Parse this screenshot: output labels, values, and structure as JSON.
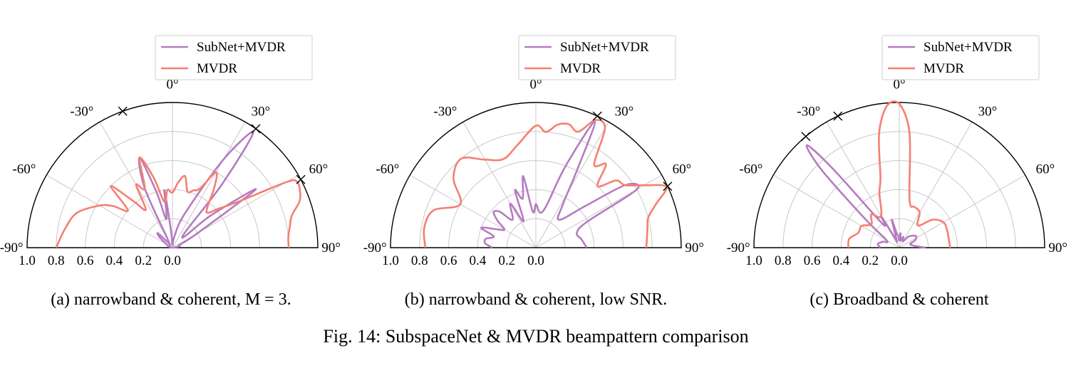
{
  "figure": {
    "caption": "Fig. 14: SubspaceNet & MVDR beampattern comparison"
  },
  "colors": {
    "subnet": "#b57cc1",
    "mvdr": "#f57f72",
    "grid": "#c8c8c8"
  },
  "chart_data": [
    {
      "type": "polar-line",
      "caption": "(a) narrowband & coherent, M = 3.",
      "angle_ticks": [
        "-90°",
        "-60°",
        "-30°",
        "0°",
        "30°",
        "60°",
        "90°"
      ],
      "radial_ticks": [
        "1.0",
        "0.8",
        "0.6",
        "0.4",
        "0.2",
        "0.0"
      ],
      "angle_range": [
        -90,
        90
      ],
      "radial_range": [
        0,
        1
      ],
      "source_markers_deg": [
        -20,
        35,
        62
      ],
      "legend": [
        "SubNet+MVDR",
        "MVDR"
      ],
      "legend_position": "top-right",
      "series": [
        {
          "name": "SubNet+MVDR",
          "points": [
            [
              -90,
              0.0
            ],
            [
              -75,
              0.02
            ],
            [
              -60,
              0.05
            ],
            [
              -50,
              0.12
            ],
            [
              -45,
              0.14
            ],
            [
              -40,
              0.05
            ],
            [
              -30,
              0.06
            ],
            [
              -25,
              0.45
            ],
            [
              -20,
              0.66
            ],
            [
              -16,
              0.4
            ],
            [
              -12,
              0.2
            ],
            [
              -8,
              0.4
            ],
            [
              -5,
              0.12
            ],
            [
              0,
              0.02
            ],
            [
              10,
              0.08
            ],
            [
              20,
              0.25
            ],
            [
              30,
              0.7
            ],
            [
              35,
              0.97
            ],
            [
              38,
              0.55
            ],
            [
              42,
              0.1
            ],
            [
              50,
              0.35
            ],
            [
              55,
              0.7
            ],
            [
              60,
              0.2
            ],
            [
              70,
              0.05
            ],
            [
              80,
              0.05
            ],
            [
              90,
              0.0
            ]
          ]
        },
        {
          "name": "MVDR",
          "points": [
            [
              -90,
              0.8
            ],
            [
              -80,
              0.75
            ],
            [
              -70,
              0.7
            ],
            [
              -60,
              0.58
            ],
            [
              -55,
              0.5
            ],
            [
              -50,
              0.4
            ],
            [
              -45,
              0.6
            ],
            [
              -40,
              0.42
            ],
            [
              -35,
              0.32
            ],
            [
              -30,
              0.5
            ],
            [
              -25,
              0.45
            ],
            [
              -20,
              0.66
            ],
            [
              -15,
              0.5
            ],
            [
              -10,
              0.32
            ],
            [
              -5,
              0.4
            ],
            [
              0,
              0.38
            ],
            [
              5,
              0.45
            ],
            [
              10,
              0.5
            ],
            [
              15,
              0.4
            ],
            [
              20,
              0.42
            ],
            [
              25,
              0.45
            ],
            [
              30,
              0.6
            ],
            [
              35,
              0.5
            ],
            [
              40,
              0.38
            ],
            [
              45,
              0.34
            ],
            [
              50,
              0.42
            ],
            [
              55,
              0.55
            ],
            [
              60,
              0.9
            ],
            [
              62,
              0.97
            ],
            [
              66,
              0.96
            ],
            [
              70,
              0.93
            ],
            [
              75,
              0.85
            ],
            [
              80,
              0.82
            ],
            [
              85,
              0.8
            ],
            [
              90,
              0.8
            ]
          ]
        }
      ]
    },
    {
      "type": "polar-line",
      "caption": "(b) narrowband & coherent, low SNR.",
      "angle_ticks": [
        "-90°",
        "-60°",
        "-30°",
        "0°",
        "30°",
        "60°",
        "90°"
      ],
      "radial_ticks": [
        "1.0",
        "0.8",
        "0.6",
        "0.4",
        "0.2",
        "0.0"
      ],
      "angle_range": [
        -90,
        90
      ],
      "radial_range": [
        0,
        1
      ],
      "source_markers_deg": [
        25,
        65
      ],
      "legend": [
        "SubNet+MVDR",
        "MVDR"
      ],
      "legend_position": "top-right",
      "series": [
        {
          "name": "SubNet+MVDR",
          "points": [
            [
              -90,
              0.3
            ],
            [
              -85,
              0.35
            ],
            [
              -80,
              0.35
            ],
            [
              -75,
              0.3
            ],
            [
              -70,
              0.4
            ],
            [
              -65,
              0.3
            ],
            [
              -60,
              0.25
            ],
            [
              -55,
              0.32
            ],
            [
              -50,
              0.38
            ],
            [
              -45,
              0.35
            ],
            [
              -40,
              0.25
            ],
            [
              -30,
              0.35
            ],
            [
              -25,
              0.2
            ],
            [
              -20,
              0.42
            ],
            [
              -15,
              0.35
            ],
            [
              -10,
              0.5
            ],
            [
              -5,
              0.25
            ],
            [
              0,
              0.3
            ],
            [
              5,
              0.25
            ],
            [
              10,
              0.25
            ],
            [
              15,
              0.32
            ],
            [
              20,
              0.6
            ],
            [
              25,
              0.96
            ],
            [
              28,
              0.6
            ],
            [
              32,
              0.35
            ],
            [
              40,
              0.25
            ],
            [
              50,
              0.45
            ],
            [
              55,
              0.75
            ],
            [
              60,
              0.8
            ],
            [
              63,
              0.4
            ],
            [
              70,
              0.3
            ],
            [
              80,
              0.32
            ],
            [
              90,
              0.35
            ]
          ]
        },
        {
          "name": "MVDR",
          "points": [
            [
              -90,
              0.76
            ],
            [
              -80,
              0.78
            ],
            [
              -70,
              0.75
            ],
            [
              -60,
              0.6
            ],
            [
              -50,
              0.74
            ],
            [
              -40,
              0.8
            ],
            [
              -30,
              0.7
            ],
            [
              -20,
              0.65
            ],
            [
              -10,
              0.72
            ],
            [
              0,
              0.84
            ],
            [
              5,
              0.8
            ],
            [
              10,
              0.86
            ],
            [
              15,
              0.88
            ],
            [
              20,
              0.85
            ],
            [
              25,
              0.97
            ],
            [
              30,
              0.95
            ],
            [
              35,
              0.7
            ],
            [
              40,
              0.75
            ],
            [
              45,
              0.6
            ],
            [
              50,
              0.72
            ],
            [
              55,
              0.75
            ],
            [
              60,
              0.86
            ],
            [
              65,
              0.99
            ],
            [
              70,
              0.88
            ],
            [
              75,
              0.8
            ],
            [
              80,
              0.78
            ],
            [
              90,
              0.76
            ]
          ]
        }
      ]
    },
    {
      "type": "polar-line",
      "caption": "(c) Broadband & coherent",
      "angle_ticks": [
        "-90°",
        "-60°",
        "-30°",
        "0°",
        "30°",
        "60°",
        "90°"
      ],
      "radial_ticks": [
        "1.0",
        "0.8",
        "0.6",
        "0.4",
        "0.2",
        "0.0"
      ],
      "angle_range": [
        -90,
        90
      ],
      "radial_range": [
        0,
        1
      ],
      "source_markers_deg": [
        -40,
        -25
      ],
      "legend": [
        "SubNet+MVDR",
        "MVDR"
      ],
      "legend_position": "top-right",
      "series": [
        {
          "name": "SubNet+MVDR",
          "points": [
            [
              -90,
              0.13
            ],
            [
              -80,
              0.15
            ],
            [
              -70,
              0.12
            ],
            [
              -60,
              0.1
            ],
            [
              -50,
              0.3
            ],
            [
              -45,
              0.75
            ],
            [
              -42,
              0.95
            ],
            [
              -40,
              0.7
            ],
            [
              -35,
              0.2
            ],
            [
              -30,
              0.25
            ],
            [
              -25,
              0.08
            ],
            [
              -20,
              0.05
            ],
            [
              -15,
              0.2
            ],
            [
              -10,
              0.1
            ],
            [
              -5,
              0.08
            ],
            [
              0,
              0.05
            ],
            [
              5,
              0.1
            ],
            [
              10,
              0.05
            ],
            [
              20,
              0.08
            ],
            [
              30,
              0.05
            ],
            [
              40,
              0.1
            ],
            [
              55,
              0.14
            ],
            [
              65,
              0.12
            ],
            [
              75,
              0.08
            ],
            [
              90,
              0.18
            ]
          ]
        },
        {
          "name": "MVDR",
          "points": [
            [
              -90,
              0.35
            ],
            [
              -80,
              0.35
            ],
            [
              -70,
              0.3
            ],
            [
              -60,
              0.3
            ],
            [
              -50,
              0.25
            ],
            [
              -40,
              0.3
            ],
            [
              -30,
              0.25
            ],
            [
              -20,
              0.4
            ],
            [
              -15,
              0.5
            ],
            [
              -10,
              0.8
            ],
            [
              -5,
              0.98
            ],
            [
              0,
              0.99
            ],
            [
              5,
              0.8
            ],
            [
              10,
              0.4
            ],
            [
              15,
              0.3
            ],
            [
              20,
              0.3
            ],
            [
              30,
              0.28
            ],
            [
              40,
              0.2
            ],
            [
              50,
              0.3
            ],
            [
              60,
              0.35
            ],
            [
              70,
              0.35
            ],
            [
              90,
              0.35
            ]
          ]
        }
      ]
    }
  ]
}
